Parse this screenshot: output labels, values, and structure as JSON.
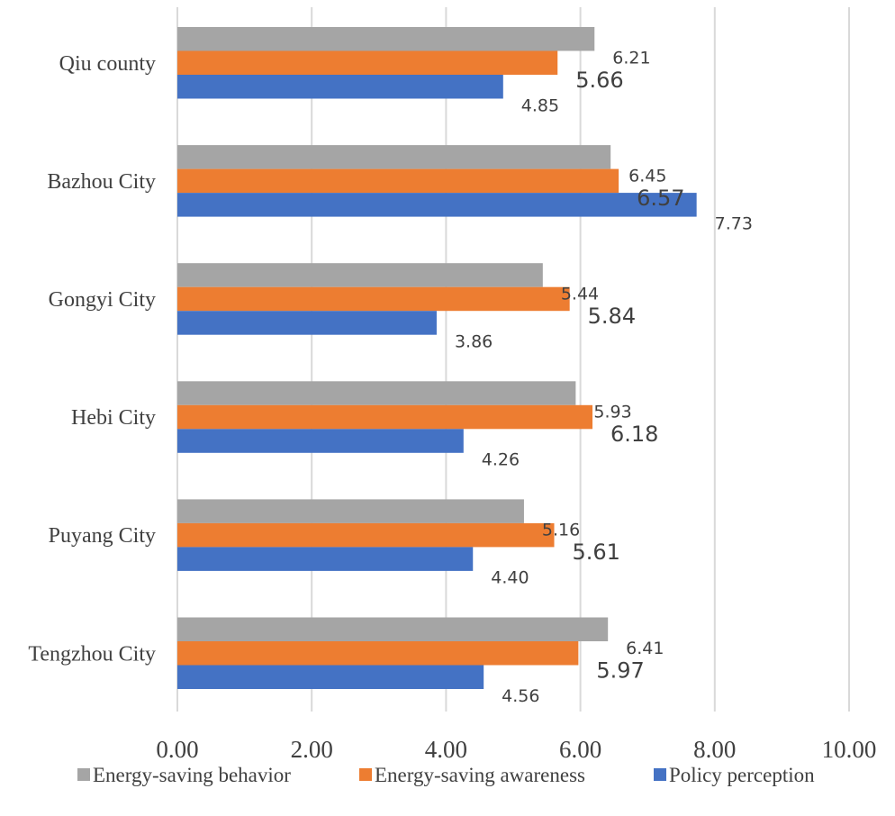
{
  "chart_data": {
    "type": "bar",
    "orientation": "horizontal",
    "categories": [
      "Qiu county",
      "Bazhou City",
      "Gongyi City",
      "Hebi City",
      "Puyang City",
      "Tengzhou City"
    ],
    "series": [
      {
        "name": "Energy-saving behavior",
        "color": "#a5a5a5",
        "values": [
          6.21,
          6.45,
          5.44,
          5.93,
          5.16,
          6.41
        ],
        "labels": [
          "6.21",
          "6.45",
          "5.44",
          "5.93",
          "5.16",
          "6.41"
        ]
      },
      {
        "name": "Energy-saving awareness",
        "color": "#ed7d31",
        "values": [
          5.66,
          6.57,
          5.84,
          6.18,
          5.61,
          5.97
        ],
        "labels": [
          "5.66",
          "6.57",
          "5.84",
          "6.18",
          "5.61",
          "5.97"
        ]
      },
      {
        "name": "Policy perception",
        "color": "#4472c4",
        "values": [
          4.85,
          7.73,
          3.86,
          4.26,
          4.4,
          4.56
        ],
        "labels": [
          "4.85",
          "7.73",
          "3.86",
          "4.26",
          "4.40",
          "4.56"
        ]
      }
    ],
    "x_ticks": [
      "0.00",
      "2.00",
      "4.00",
      "6.00",
      "8.00",
      "10.00"
    ],
    "xlim": [
      0,
      10
    ],
    "grid": "vertical",
    "legend_position": "bottom"
  }
}
